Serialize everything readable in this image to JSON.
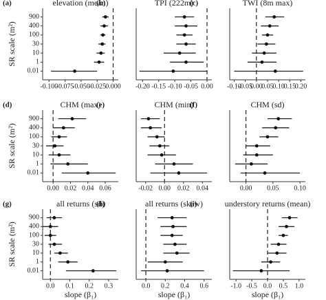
{
  "chart_data": [
    {
      "type": "dot",
      "panel": "(a)",
      "title": "elevation (mean)",
      "ylabel": "SR scale (m²)",
      "categories": [
        "900",
        "400",
        "100",
        "30",
        "10",
        "1",
        "0.01"
      ],
      "values": [
        -0.012,
        -0.014,
        -0.016,
        -0.017,
        -0.019,
        -0.022,
        -0.06
      ],
      "ci_low": [
        -0.017,
        -0.02,
        -0.02,
        -0.023,
        -0.026,
        -0.03,
        -0.097
      ],
      "ci_high": [
        -0.007,
        -0.008,
        -0.012,
        -0.012,
        -0.013,
        -0.014,
        -0.025
      ],
      "xlim": [
        -0.11,
        0.008
      ],
      "xticks": [
        {
          "value": -0.1,
          "label": "-0.100"
        },
        {
          "value": -0.075,
          "label": "-0.075"
        },
        {
          "value": -0.05,
          "label": "-0.050"
        },
        {
          "value": -0.025,
          "label": "-0.025"
        },
        {
          "value": 0,
          "label": "0.000"
        }
      ],
      "ref": 0
    },
    {
      "type": "dot",
      "panel": "(b)",
      "title": "TPI (222m)",
      "values": [
        -0.07,
        -0.065,
        -0.07,
        -0.065,
        -0.085,
        -0.065,
        -0.105
      ],
      "ci_low": [
        -0.1,
        -0.1,
        -0.095,
        -0.095,
        -0.135,
        -0.115,
        -0.21
      ],
      "ci_high": [
        -0.04,
        -0.03,
        -0.045,
        -0.035,
        -0.035,
        -0.01,
        0.0
      ],
      "xlim": [
        -0.22,
        0.015
      ],
      "xticks": [
        {
          "value": -0.2,
          "label": "-0.20"
        },
        {
          "value": -0.15,
          "label": "-0.15"
        },
        {
          "value": -0.1,
          "label": "-0.10"
        },
        {
          "value": -0.05,
          "label": "-0.05"
        },
        {
          "value": 0,
          "label": "0.00"
        }
      ],
      "ref": 0
    },
    {
      "type": "dot",
      "panel": "(c)",
      "title": "TWI (8m max)",
      "values": [
        0.08,
        0.06,
        0.05,
        0.045,
        0.035,
        0.025,
        0.085
      ],
      "ci_low": [
        0.04,
        0.02,
        0.025,
        0.005,
        -0.02,
        -0.04,
        -0.1
      ],
      "ci_high": [
        0.125,
        0.1,
        0.075,
        0.085,
        0.09,
        0.09,
        0.21
      ],
      "xlim": [
        -0.12,
        0.22
      ],
      "xticks": [
        {
          "value": -0.1,
          "label": "-0.10"
        },
        {
          "value": -0.05,
          "label": "-0.05"
        },
        {
          "value": 0,
          "label": "0.00"
        },
        {
          "value": 0.05,
          "label": "0.05"
        },
        {
          "value": 0.1,
          "label": "0.10"
        },
        {
          "value": 0.15,
          "label": "0.15"
        },
        {
          "value": 0.2,
          "label": "0.20"
        }
      ],
      "ref": 0
    },
    {
      "type": "dot",
      "panel": "(d)",
      "title": "CHM (max)",
      "ylabel": "SR scale (m²)",
      "categories": [
        "900",
        "400",
        "100",
        "30",
        "10",
        "1",
        "0.01"
      ],
      "values": [
        0.022,
        0.012,
        0.007,
        0.002,
        0.007,
        0.017,
        0.04
      ],
      "ci_low": [
        0.006,
        0.0,
        -0.002,
        -0.008,
        -0.005,
        -0.003,
        0.01
      ],
      "ci_high": [
        0.038,
        0.025,
        0.016,
        0.012,
        0.02,
        0.04,
        0.072
      ],
      "xlim": [
        -0.012,
        0.075
      ],
      "xticks": [
        {
          "value": 0,
          "label": "0.00"
        },
        {
          "value": 0.02,
          "label": "0.02"
        },
        {
          "value": 0.04,
          "label": "0.04"
        },
        {
          "value": 0.06,
          "label": "0.06"
        }
      ],
      "ref": 0
    },
    {
      "type": "dot",
      "panel": "(e)",
      "title": "CHM (min)",
      "values": [
        -0.017,
        -0.015,
        -0.008,
        -0.005,
        -0.003,
        0.01,
        0.015
      ],
      "ci_low": [
        -0.025,
        -0.025,
        -0.018,
        -0.016,
        -0.018,
        -0.01,
        -0.015
      ],
      "ci_high": [
        -0.005,
        -0.003,
        0.0,
        0.005,
        0.012,
        0.03,
        0.045
      ],
      "xlim": [
        -0.03,
        0.05
      ],
      "xticks": [
        {
          "value": -0.02,
          "label": "-0.02"
        },
        {
          "value": 0,
          "label": "0.00"
        },
        {
          "value": 0.02,
          "label": "0.02"
        },
        {
          "value": 0.04,
          "label": "0.04"
        }
      ],
      "ref": 0
    },
    {
      "type": "dot",
      "panel": "(f)",
      "title": "CHM (sd)",
      "values": [
        0.06,
        0.055,
        0.04,
        0.02,
        0.02,
        0.01,
        0.035
      ],
      "ci_low": [
        0.04,
        0.03,
        0.025,
        0.0,
        -0.005,
        -0.02,
        -0.01
      ],
      "ci_high": [
        0.085,
        0.08,
        0.06,
        0.045,
        0.05,
        0.04,
        0.1
      ],
      "xlim": [
        -0.03,
        0.11
      ],
      "xticks": [
        {
          "value": 0,
          "label": "0.00"
        },
        {
          "value": 0.05,
          "label": "0.05"
        },
        {
          "value": 0.1,
          "label": "0.10"
        }
      ],
      "ref": 0
    },
    {
      "type": "dot",
      "panel": "(g)",
      "title": "all returns (sd)",
      "ylabel": "SR scale (m²)",
      "xlabel": "slope (β₁)",
      "categories": [
        "900",
        "400",
        "100",
        "30",
        "10",
        "1",
        "0.01"
      ],
      "values": [
        0.02,
        0.0,
        0.0,
        0.02,
        0.05,
        0.09,
        0.22
      ],
      "ci_low": [
        -0.02,
        -0.04,
        -0.03,
        -0.01,
        0.02,
        0.04,
        0.08
      ],
      "ci_high": [
        0.06,
        0.04,
        0.03,
        0.06,
        0.09,
        0.14,
        0.34
      ],
      "xlim": [
        -0.04,
        0.35
      ],
      "xticks": [
        {
          "value": 0,
          "label": "0.0"
        },
        0.1,
        0.2,
        0.3
      ],
      "ref": 0
    },
    {
      "type": "dot",
      "panel": "(h)",
      "title": "all returns (skew)",
      "xlabel": "slope (β₁)",
      "values": [
        0.27,
        0.28,
        0.27,
        0.3,
        0.32,
        0.2,
        0.22
      ],
      "ci_low": [
        0.12,
        0.15,
        0.15,
        0.18,
        0.18,
        0.02,
        -0.05
      ],
      "ci_high": [
        0.42,
        0.42,
        0.38,
        0.42,
        0.45,
        0.38,
        0.6
      ],
      "xlim": [
        -0.1,
        0.68
      ],
      "xticks": [
        {
          "value": 0,
          "label": "0.0"
        },
        0.2,
        0.4,
        0.6
      ],
      "ref": 0
    },
    {
      "type": "dot",
      "panel": "(i)",
      "title": "understory returns (mean)",
      "xlabel": "slope (β₁)",
      "values": [
        0.7,
        0.6,
        0.5,
        0.35,
        0.3,
        0.1,
        -0.2
      ],
      "ci_low": [
        0.45,
        0.35,
        0.35,
        0.1,
        0.0,
        -0.2,
        -1.1
      ],
      "ci_high": [
        0.95,
        0.85,
        0.65,
        0.6,
        0.6,
        0.4,
        0.7
      ],
      "xlim": [
        -1.2,
        1.2
      ],
      "xticks": [
        {
          "value": -1,
          "label": "-1.0"
        },
        {
          "value": -0.5,
          "label": "-0.5"
        },
        {
          "value": 0,
          "label": "0.0"
        },
        {
          "value": 0.5,
          "label": "0.5"
        },
        {
          "value": 1,
          "label": "1.0"
        }
      ],
      "ref": 0
    }
  ]
}
